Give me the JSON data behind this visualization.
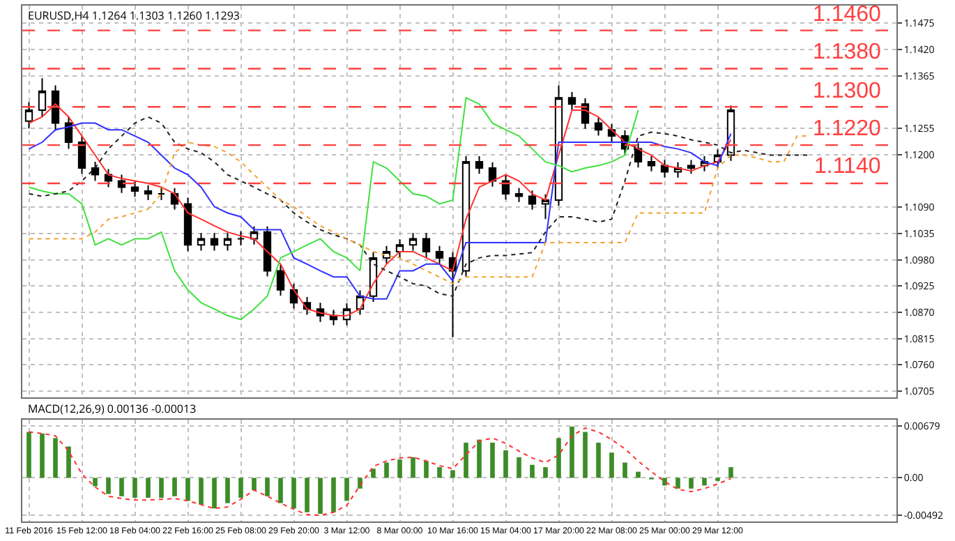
{
  "chart_data": [
    {
      "type": "candlestick",
      "annotations": [
        "EURUSD,H4 1.1264 1.1303 1.1260 1.1293"
      ],
      "color": "#000000",
      "grid": true,
      "tick_labels": "y",
      "marker": "none",
      "categories": [
        null,
        null,
        null,
        null,
        null,
        null,
        null,
        null,
        null,
        null,
        null,
        null,
        null,
        null,
        null,
        null,
        null,
        null,
        null,
        null,
        null,
        null,
        null,
        null,
        null,
        null,
        null,
        null,
        null,
        null,
        null,
        null,
        null,
        null,
        null,
        null,
        null,
        null,
        null,
        null,
        null,
        null,
        null,
        null,
        null,
        null,
        null,
        null,
        null,
        null,
        null,
        null,
        null,
        null,
        null,
        null,
        null,
        null,
        null,
        null,
        null,
        null,
        null,
        null,
        null,
        null
      ],
      "ylim": [
        1.0692,
        1.1512
      ],
      "yticks": [
        1.0705,
        {
          "value": 1.076,
          "label": "1.0760"
        },
        1.0815,
        {
          "value": 1.087,
          "label": "1.0870"
        },
        1.0925,
        {
          "value": 1.098,
          "label": "1.0980"
        },
        1.1035,
        {
          "value": 1.109,
          "label": "1.1090"
        },
        {
          "value": 1.12,
          "label": "1.1200"
        },
        1.1255,
        1.1365,
        {
          "value": 1.142,
          "label": "1.1420"
        },
        1.1475
      ],
      "ref_lines": [
        {
          "axis": "y",
          "value": 1.146,
          "label": "1.1460",
          "color": "#ff4040",
          "line_style": "dashed"
        },
        {
          "axis": "y",
          "value": 1.138,
          "label": "1.1380",
          "color": "#ff4040",
          "line_style": "dashed"
        },
        {
          "axis": "y",
          "value": 1.13,
          "label": "1.1300",
          "color": "#ff4040",
          "line_style": "dashed"
        },
        {
          "axis": "y",
          "value": 1.122,
          "label": "1.1220",
          "color": "#ff4040",
          "line_style": "dashed"
        },
        {
          "axis": "y",
          "value": 1.114,
          "label": "1.1140",
          "color": "#ff4040",
          "line_style": "dashed"
        }
      ],
      "ohlc": [
        [
          1.127,
          1.131,
          1.1255,
          1.1293
        ],
        [
          1.1293,
          1.136,
          1.128,
          1.1333
        ],
        [
          1.1333,
          1.1345,
          1.125,
          1.1266
        ],
        [
          1.1266,
          1.128,
          1.1212,
          1.1226
        ],
        [
          1.1226,
          1.1238,
          1.116,
          1.1172
        ],
        [
          1.1172,
          1.1185,
          1.1145,
          1.1158
        ],
        [
          1.1158,
          1.117,
          1.1132,
          1.1145
        ],
        [
          1.1145,
          1.1158,
          1.112,
          1.1132
        ],
        [
          1.1132,
          1.1145,
          1.1112,
          1.1124
        ],
        [
          1.1124,
          1.1136,
          1.1105,
          1.1118
        ],
        [
          1.1118,
          1.113,
          1.1105,
          1.1118
        ],
        [
          1.1118,
          1.113,
          1.1085,
          1.1097
        ],
        [
          1.1097,
          1.111,
          1.0998,
          1.1011
        ],
        [
          1.1011,
          1.1036,
          1.0999,
          1.1024
        ],
        [
          1.1024,
          1.1036,
          1.0999,
          1.1011
        ],
        [
          1.1011,
          1.1036,
          1.0999,
          1.1024
        ],
        [
          1.1024,
          1.104,
          1.101,
          1.1024
        ],
        [
          1.1024,
          1.105,
          1.1012,
          1.1038
        ],
        [
          1.1038,
          1.105,
          1.0945,
          1.0957
        ],
        [
          1.0957,
          1.097,
          1.0905,
          1.0917
        ],
        [
          1.0917,
          1.093,
          1.0878,
          1.089
        ],
        [
          1.089,
          1.0902,
          1.0865,
          1.0877
        ],
        [
          1.0877,
          1.089,
          1.085,
          1.0863
        ],
        [
          1.0863,
          1.0875,
          1.0843,
          1.0855
        ],
        [
          1.0855,
          1.0889,
          1.0843,
          1.0877
        ],
        [
          1.0877,
          1.0916,
          1.0865,
          1.0904
        ],
        [
          1.0904,
          1.0996,
          1.0892,
          1.0984
        ],
        [
          1.0984,
          1.1009,
          1.0972,
          1.0997
        ],
        [
          1.0997,
          1.1023,
          1.0985,
          1.1011
        ],
        [
          1.1011,
          1.1036,
          1.0999,
          1.1024
        ],
        [
          1.1024,
          1.1036,
          1.0985,
          1.0997
        ],
        [
          1.0997,
          1.1009,
          1.0972,
          1.0984
        ],
        [
          1.0984,
          1.0996,
          1.0818,
          1.0957
        ],
        [
          1.0957,
          1.1197,
          1.0945,
          1.1185
        ],
        [
          1.1185,
          1.1197,
          1.116,
          1.1172
        ],
        [
          1.1172,
          1.1184,
          1.1133,
          1.1145
        ],
        [
          1.1145,
          1.1157,
          1.1106,
          1.1118
        ],
        [
          1.1118,
          1.113,
          1.1101,
          1.1113
        ],
        [
          1.1113,
          1.1125,
          1.1085,
          1.1097
        ],
        [
          1.1097,
          1.1117,
          1.1065,
          1.1105
        ],
        [
          1.1105,
          1.1345,
          1.1093,
          1.1319
        ],
        [
          1.1319,
          1.1331,
          1.1294,
          1.1306
        ],
        [
          1.1306,
          1.1318,
          1.1254,
          1.1266
        ],
        [
          1.1266,
          1.1278,
          1.124,
          1.1252
        ],
        [
          1.1252,
          1.1264,
          1.1227,
          1.1239
        ],
        [
          1.1239,
          1.1251,
          1.12,
          1.1212
        ],
        [
          1.1212,
          1.1224,
          1.1173,
          1.1185
        ],
        [
          1.1185,
          1.1197,
          1.1165,
          1.1177
        ],
        [
          1.1177,
          1.1189,
          1.1152,
          1.1164
        ],
        [
          1.1164,
          1.1184,
          1.1152,
          1.1172
        ],
        [
          1.1172,
          1.1189,
          1.116,
          1.1177
        ],
        [
          1.1177,
          1.1197,
          1.1165,
          1.1185
        ],
        [
          1.1185,
          1.1211,
          1.1173,
          1.1199
        ],
        [
          1.1199,
          1.1303,
          1.1187,
          1.1293
        ],
        null,
        null,
        null,
        null,
        null,
        null,
        null,
        null,
        null,
        null,
        null,
        null
      ],
      "series": [
        {
          "type": "line",
          "color": "#ff3030",
          "line_style": "solid",
          "values": [
            1.1266,
            1.1279,
            1.1306,
            1.1279,
            1.1239,
            1.1199,
            1.1158,
            1.115,
            1.1145,
            1.114,
            1.1132,
            1.1118,
            1.1078,
            1.1065,
            1.1051,
            1.1038,
            1.103,
            1.1024,
            1.0997,
            1.0971,
            1.0917,
            1.0877,
            1.0869,
            1.0863,
            1.0863,
            1.0877,
            1.093,
            1.0971,
            1.0997,
            1.0997,
            1.0984,
            1.0971,
            1.0957,
            1.1065,
            1.1132,
            1.1145,
            1.1158,
            1.1145,
            1.1118,
            1.1105,
            1.1199,
            1.1293,
            1.1293,
            1.1279,
            1.1252,
            1.1226,
            1.1212,
            1.1199,
            1.1177,
            1.1172,
            1.1166,
            1.1177,
            1.1185,
            1.1231,
            null,
            null,
            null,
            null,
            null,
            null,
            null,
            null,
            null,
            null,
            null,
            null
          ]
        },
        {
          "type": "line",
          "color": "#3030ff",
          "line_style": "solid",
          "values": [
            1.1212,
            1.1226,
            1.1252,
            1.1258,
            1.1266,
            1.1266,
            1.1252,
            1.1252,
            1.1239,
            1.1226,
            1.1199,
            1.1172,
            1.1158,
            1.1132,
            1.1091,
            1.1078,
            1.107,
            1.1043,
            1.1043,
            1.1043,
            1.0984,
            1.0971,
            1.0957,
            1.0944,
            1.0944,
            1.0904,
            1.0898,
            1.0898,
            1.0957,
            1.0957,
            1.0971,
            1.0971,
            1.0936,
            1.1016,
            1.1016,
            1.1016,
            1.1016,
            1.1016,
            1.1016,
            1.1016,
            1.1226,
            1.1226,
            1.1226,
            1.1226,
            1.1226,
            1.1226,
            1.1226,
            1.1226,
            1.1217,
            1.1212,
            1.1204,
            1.1185,
            1.1177,
            1.1244,
            null,
            null,
            null,
            null,
            null,
            null,
            null,
            null,
            null,
            null,
            null,
            null
          ]
        },
        {
          "type": "line",
          "color": "#40e040",
          "line_style": "solid",
          "values": [
            1.1132,
            1.1124,
            1.1118,
            1.1118,
            1.1097,
            1.1011,
            1.1024,
            1.1011,
            1.1024,
            1.1024,
            1.1038,
            1.0957,
            1.0917,
            1.089,
            1.0877,
            1.0863,
            1.0855,
            1.0877,
            1.0904,
            1.0984,
            1.0997,
            1.1011,
            1.1024,
            1.0997,
            1.0984,
            1.0957,
            1.1185,
            1.1172,
            1.1145,
            1.1118,
            1.1113,
            1.1097,
            1.1105,
            1.1319,
            1.1306,
            1.1266,
            1.1252,
            1.1239,
            1.1212,
            1.1185,
            1.1177,
            1.1164,
            1.1172,
            1.1177,
            1.1185,
            1.1199,
            1.1293,
            null,
            null,
            null,
            null,
            null,
            null,
            null,
            null,
            null,
            null,
            null,
            null,
            null,
            null,
            null,
            null,
            null,
            null,
            null
          ]
        },
        {
          "type": "line",
          "color": "#202020",
          "line_style": "dotted",
          "values": [
            1.1118,
            1.1113,
            1.1118,
            1.1124,
            1.1145,
            1.1172,
            1.1212,
            1.1239,
            1.1266,
            1.1279,
            1.1266,
            1.1226,
            1.1212,
            1.1204,
            1.1185,
            1.1158,
            1.1145,
            1.1132,
            1.1118,
            1.1105,
            1.1078,
            1.1059,
            1.1043,
            1.1032,
            1.1024,
            1.1011,
            1.0971,
            1.0957,
            1.0944,
            1.093,
            1.0925,
            1.0909,
            1.0904,
            1.0971,
            1.0984,
            1.0989,
            1.0989,
            1.0992,
            1.0995,
            1.1038,
            1.107,
            1.107,
            1.1065,
            1.1059,
            1.1065,
            1.1145,
            1.1239,
            1.1247,
            1.1244,
            1.1239,
            1.1231,
            1.1226,
            1.122,
            1.1204,
            1.1209,
            1.1204,
            1.1199,
            1.1199,
            1.1199,
            1.1199,
            null,
            null,
            null,
            null,
            null,
            null
          ]
        },
        {
          "type": "line",
          "color": "#f5a030",
          "line_style": "dotted",
          "values": [
            1.1024,
            1.1024,
            1.1024,
            1.1024,
            1.1024,
            1.1038,
            1.1065,
            1.107,
            1.1078,
            1.1086,
            1.1118,
            1.1204,
            1.1226,
            1.122,
            1.1217,
            1.1204,
            1.1185,
            1.1158,
            1.1132,
            1.1105,
            1.1091,
            1.107,
            1.1051,
            1.1038,
            1.1024,
            1.1011,
            1.0997,
            1.0989,
            1.0984,
            1.0971,
            1.0957,
            1.0944,
            1.093,
            1.0944,
            1.0944,
            1.0944,
            1.0944,
            1.0944,
            1.0944,
            1.1016,
            1.1016,
            1.1016,
            1.1016,
            1.1016,
            1.1016,
            1.1016,
            1.1078,
            1.1078,
            1.1078,
            1.1078,
            1.1078,
            1.1078,
            1.1172,
            1.1199,
            1.1199,
            1.1193,
            1.1185,
            1.1185,
            1.1239,
            1.1239,
            null,
            null,
            null,
            null,
            null,
            null
          ]
        }
      ]
    },
    {
      "type": "bar",
      "annotations": [
        "MACD(12,26,9) 0.00136 -0.00013"
      ],
      "grid": true,
      "categories": [
        "11 Feb 2016",
        null,
        null,
        null,
        "15 Feb 12:00",
        null,
        null,
        null,
        "18 Feb 04:00",
        null,
        null,
        null,
        "22 Feb 16:00",
        null,
        null,
        null,
        "25 Feb 08:00",
        null,
        null,
        null,
        "29 Feb 20:00",
        null,
        null,
        null,
        "3 Mar 12:00",
        null,
        null,
        null,
        "8 Mar 00:00",
        null,
        null,
        null,
        "10 Mar 16:00",
        null,
        null,
        null,
        "15 Mar 04:00",
        null,
        null,
        null,
        "17 Mar 20:00",
        null,
        null,
        null,
        "22 Mar 08:00",
        null,
        null,
        null,
        "25 Mar 00:00",
        null,
        null,
        null,
        "29 Mar 12:00",
        null,
        null,
        null,
        null,
        null,
        null,
        null,
        null,
        null,
        null,
        null,
        null,
        null
      ],
      "ylim": [
        -0.0057,
        0.0076
      ],
      "yticks": [
        -0.00492,
        {
          "value": 0,
          "label": "0.00"
        },
        0.00679
      ],
      "series": [
        {
          "color": "#3c8c28",
          "values": [
            0.006,
            0.0058,
            0.0052,
            0.0041,
            0,
            -0.0011,
            -0.0021,
            -0.0024,
            -0.0026,
            -0.0026,
            -0.0026,
            -0.0024,
            -0.003,
            -0.0035,
            -0.004,
            -0.0033,
            -0.0026,
            -0.0016,
            -0.0024,
            -0.0033,
            -0.004,
            -0.0045,
            -0.0047,
            -0.0045,
            -0.003,
            -0.0014,
            0.0012,
            0.002,
            0.0024,
            0.0027,
            0.0022,
            0.0014,
            0.001,
            0.0046,
            0.005,
            0.0046,
            0.0036,
            0.0027,
            0.0017,
            0.0014,
            0.0052,
            0.0067,
            0.006,
            0.0046,
            0.0033,
            0.002,
            0.0008,
            -0.0002,
            -0.001,
            -0.0014,
            -0.0014,
            -0.001,
            -0.0004,
            0.0014,
            null,
            null,
            null,
            null,
            null,
            null,
            null,
            null,
            null,
            null,
            null,
            null
          ]
        },
        {
          "type": "line",
          "color": "#ff3030",
          "line_style": "dotted",
          "values": [
            0.006,
            0.0058,
            0.0055,
            0.0035,
            0.0005,
            -0.0012,
            -0.0024,
            -0.0027,
            -0.0029,
            -0.0029,
            -0.0028,
            -0.0027,
            -0.003,
            -0.0035,
            -0.004,
            -0.0038,
            -0.0028,
            -0.0016,
            -0.0024,
            -0.0033,
            -0.0041,
            -0.0048,
            -0.0049,
            -0.0045,
            -0.0036,
            -0.001,
            0.0015,
            0.0022,
            0.0026,
            0.0027,
            0.0022,
            0.0016,
            0.0012,
            0.003,
            0.0048,
            0.0052,
            0.0045,
            0.0035,
            0.0026,
            0.002,
            0.003,
            0.0055,
            0.0065,
            0.006,
            0.005,
            0.0038,
            0.0022,
            0.0008,
            -0.0005,
            -0.0015,
            -0.0018,
            -0.0014,
            -0.0008,
            -0.0001,
            null,
            null,
            null,
            null,
            null,
            null,
            null,
            null,
            null,
            null,
            null,
            null
          ]
        }
      ]
    }
  ]
}
